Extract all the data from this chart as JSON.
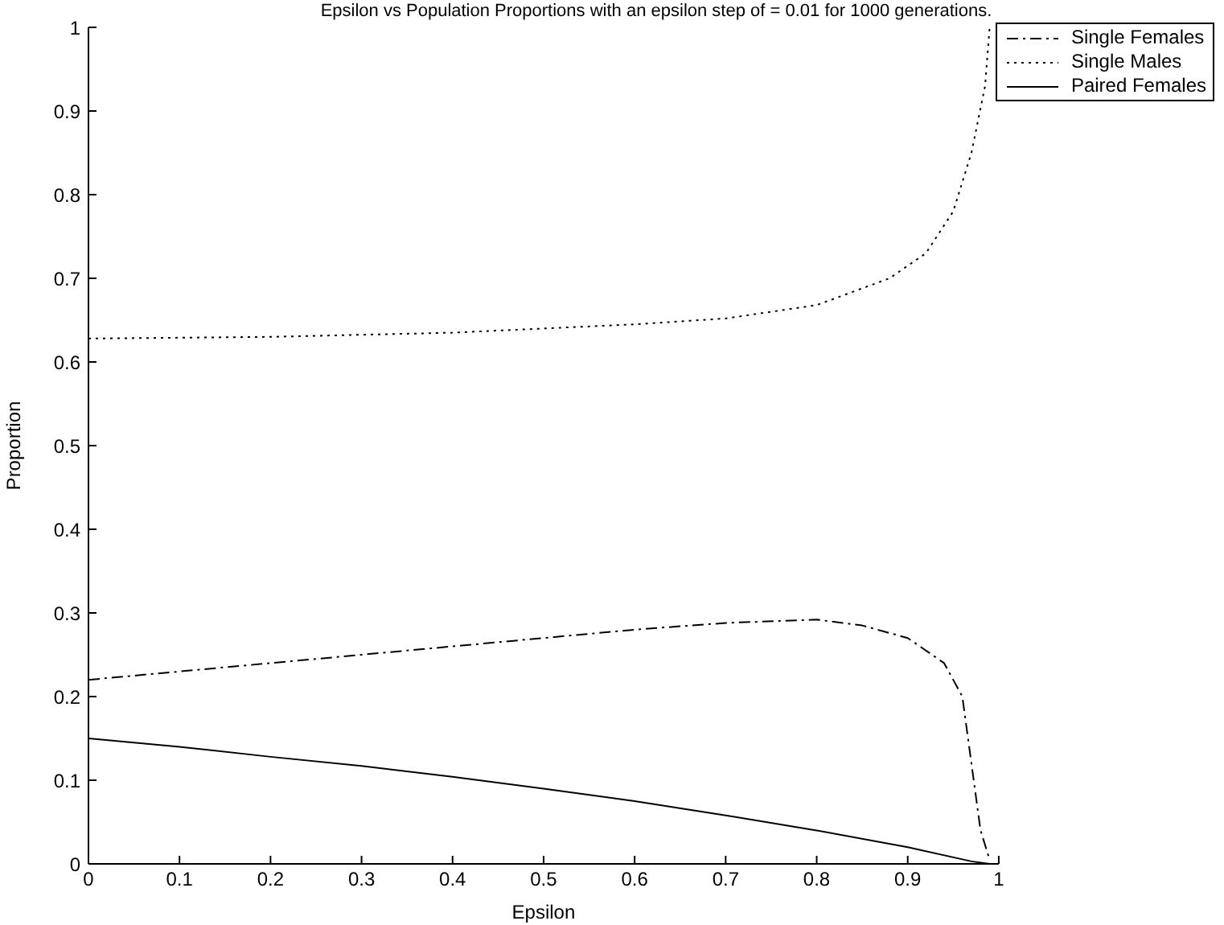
{
  "chart_data": {
    "type": "line",
    "title": "Epsilon vs Population Proportions with an epsilon step of = 0.01 for 1000 generations.",
    "xlabel": "Epsilon",
    "ylabel": "Proportion",
    "xlim": [
      0,
      1
    ],
    "xticks": [
      0,
      0.1,
      0.2,
      0.3,
      0.4,
      0.5,
      0.6,
      0.7,
      0.8,
      0.9,
      1
    ],
    "ylim": [
      0,
      1
    ],
    "yticks": [
      0,
      0.1,
      0.2,
      0.3,
      0.4,
      0.5,
      0.6,
      0.7,
      0.8,
      0.9,
      1
    ],
    "grid": false,
    "legend": "top right",
    "marker": "none",
    "series": [
      {
        "name": "Single Females",
        "color": "#000000",
        "line_style": "dashed",
        "x": [
          0,
          0.1,
          0.2,
          0.3,
          0.4,
          0.5,
          0.6,
          0.7,
          0.8,
          0.85,
          0.9,
          0.94,
          0.96,
          0.97,
          0.98,
          0.99
        ],
        "values": [
          0.22,
          0.23,
          0.24,
          0.25,
          0.26,
          0.27,
          0.28,
          0.288,
          0.292,
          0.285,
          0.27,
          0.24,
          0.2,
          0.12,
          0.04,
          0.005
        ]
      },
      {
        "name": "Single Males",
        "color": "#000000",
        "line_style": "dotted",
        "x": [
          0,
          0.2,
          0.4,
          0.5,
          0.6,
          0.7,
          0.8,
          0.88,
          0.92,
          0.95,
          0.97,
          0.985,
          0.99
        ],
        "values": [
          0.628,
          0.63,
          0.635,
          0.64,
          0.645,
          0.652,
          0.668,
          0.7,
          0.73,
          0.78,
          0.85,
          0.93,
          1
        ]
      },
      {
        "name": "Paired Females",
        "color": "#000000",
        "line_style": "solid",
        "x": [
          0,
          0.1,
          0.2,
          0.3,
          0.4,
          0.5,
          0.6,
          0.7,
          0.8,
          0.9,
          0.97,
          0.99
        ],
        "values": [
          0.15,
          0.14,
          0.128,
          0.117,
          0.104,
          0.09,
          0.075,
          0.058,
          0.04,
          0.02,
          0.003,
          0
        ]
      }
    ]
  }
}
